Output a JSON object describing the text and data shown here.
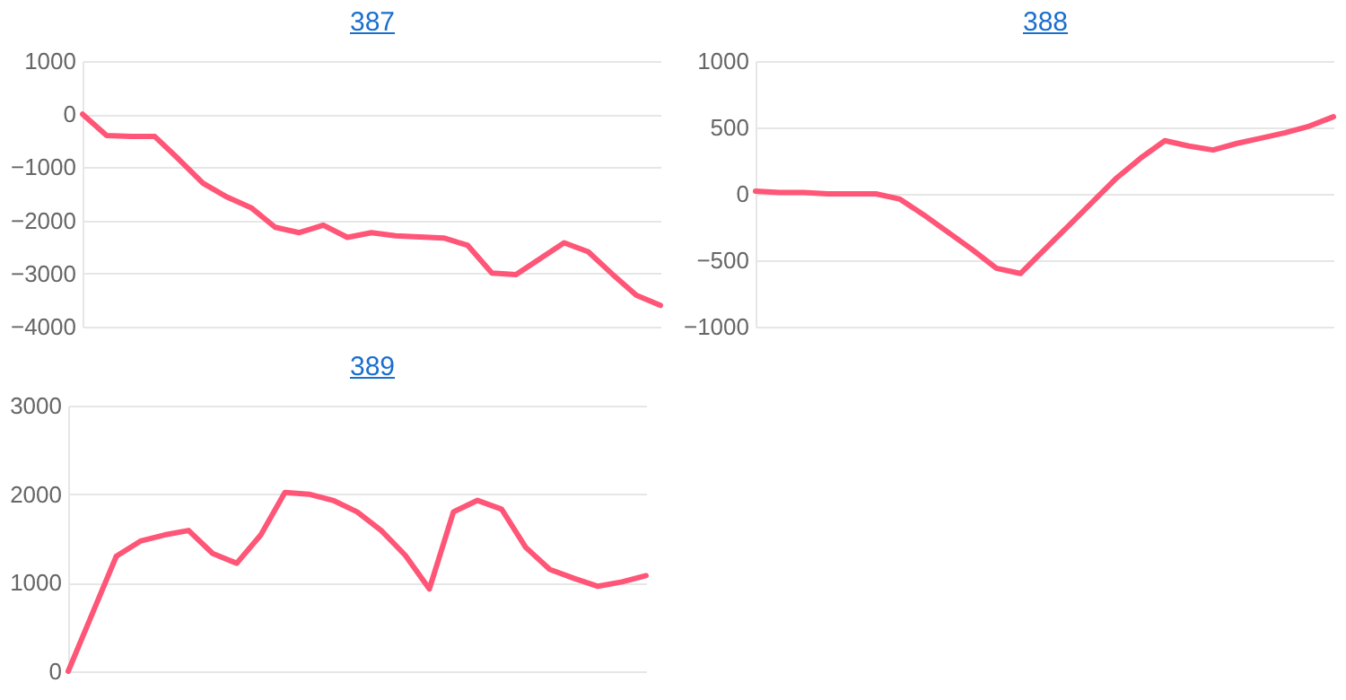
{
  "chart_data": [
    {
      "type": "line",
      "title": "387",
      "categories": [
        null,
        null,
        null,
        null,
        null,
        null,
        null,
        null,
        null,
        null,
        null,
        null,
        null,
        null,
        null,
        null,
        null,
        null,
        null,
        null,
        null,
        null,
        null,
        null,
        null
      ],
      "series": [
        {
          "color": "#ff5577",
          "values": [
            0,
            -400,
            -420,
            -420,
            -850,
            -1300,
            -1560,
            -1760,
            -2130,
            -2230,
            -2090,
            -2320,
            -2230,
            -2290,
            -2310,
            -2330,
            -2470,
            -2990,
            -3020,
            -2720,
            -2420,
            -2590,
            -3010,
            -3410,
            -3600
          ]
        }
      ],
      "ylim": [
        -4000,
        1000
      ],
      "yticks": [
        -4000,
        -3000,
        -2000,
        -1000,
        0,
        1000
      ],
      "grid": "y",
      "tick_labels": "y",
      "marker": "none",
      "line_style": "solid"
    },
    {
      "type": "line",
      "title": "388",
      "categories": [
        null,
        null,
        null,
        null,
        null,
        null,
        null,
        null,
        null,
        null,
        null,
        null,
        null,
        null,
        null,
        null,
        null,
        null,
        null,
        null,
        null,
        null,
        null,
        null,
        null
      ],
      "series": [
        {
          "color": "#ff5577",
          "values": [
            20,
            10,
            10,
            0,
            0,
            0,
            -40,
            -160,
            -290,
            -420,
            -560,
            -600,
            -420,
            -240,
            -60,
            120,
            270,
            400,
            360,
            330,
            380,
            420,
            460,
            510,
            580
          ]
        }
      ],
      "ylim": [
        -1000,
        1000
      ],
      "yticks": [
        -1000,
        -500,
        0,
        500,
        1000
      ],
      "grid": "y",
      "tick_labels": "y",
      "marker": "none",
      "line_style": "solid"
    },
    {
      "type": "line",
      "title": "389",
      "categories": [
        null,
        null,
        null,
        null,
        null,
        null,
        null,
        null,
        null,
        null,
        null,
        null,
        null,
        null,
        null,
        null,
        null,
        null,
        null,
        null,
        null,
        null,
        null,
        null,
        null
      ],
      "series": [
        {
          "color": "#ff5577",
          "values": [
            0,
            650,
            1300,
            1470,
            1540,
            1590,
            1330,
            1220,
            1540,
            2020,
            2000,
            1930,
            1800,
            1590,
            1310,
            930,
            1800,
            1930,
            1830,
            1400,
            1150,
            1050,
            960,
            1010,
            1080
          ]
        }
      ],
      "ylim": [
        0,
        3000
      ],
      "yticks": [
        0,
        1000,
        2000,
        3000
      ],
      "grid": "y",
      "tick_labels": "y",
      "marker": "none",
      "line_style": "solid"
    }
  ]
}
